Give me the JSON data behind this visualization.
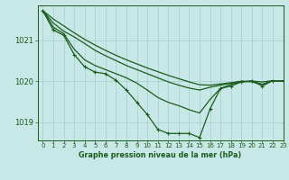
{
  "bg_color": "#c8e8e8",
  "grid_color": "#b0c8c8",
  "line_color": "#1a5c1a",
  "xlim": [
    -0.5,
    23
  ],
  "ylim": [
    1018.55,
    1021.85
  ],
  "yticks": [
    1019,
    1020,
    1021
  ],
  "xticks": [
    0,
    1,
    2,
    3,
    4,
    5,
    6,
    7,
    8,
    9,
    10,
    11,
    12,
    13,
    14,
    15,
    16,
    17,
    18,
    19,
    20,
    21,
    22,
    23
  ],
  "xlabel": "Graphe pression niveau de la mer (hPa)",
  "series_no_marker": [
    [
      1021.72,
      1021.52,
      1021.35,
      1021.18,
      1021.02,
      1020.88,
      1020.75,
      1020.63,
      1020.52,
      1020.42,
      1020.32,
      1020.23,
      1020.14,
      1020.06,
      1019.98,
      1019.91,
      1019.9,
      1019.93,
      1019.96,
      1019.99,
      1020.0,
      1019.98,
      1020.01,
      1020.0
    ],
    [
      1021.72,
      1021.42,
      1021.22,
      1021.08,
      1020.92,
      1020.75,
      1020.62,
      1020.5,
      1020.38,
      1020.28,
      1020.18,
      1020.08,
      1019.98,
      1019.9,
      1019.83,
      1019.78,
      1019.85,
      1019.9,
      1019.95,
      1020.0,
      1019.98,
      1019.92,
      1020.01,
      1020.0
    ],
    [
      1021.72,
      1021.32,
      1021.16,
      1020.78,
      1020.52,
      1020.38,
      1020.28,
      1020.18,
      1020.08,
      1019.95,
      1019.78,
      1019.6,
      1019.48,
      1019.4,
      1019.3,
      1019.22,
      1019.55,
      1019.82,
      1019.92,
      1019.98,
      1020.0,
      1019.92,
      1020.01,
      1020.0
    ]
  ],
  "series_with_marker": [
    [
      1021.72,
      1021.25,
      1021.12,
      1020.65,
      1020.35,
      1020.22,
      1020.18,
      1020.02,
      1019.78,
      1019.48,
      1019.18,
      1018.82,
      1018.72,
      1018.72,
      1018.72,
      1018.62,
      1019.32,
      1019.82,
      1019.88,
      1019.98,
      1020.0,
      1019.88,
      1020.01,
      1020.0
    ]
  ],
  "marker_size": 3.0,
  "linewidth": 0.9
}
